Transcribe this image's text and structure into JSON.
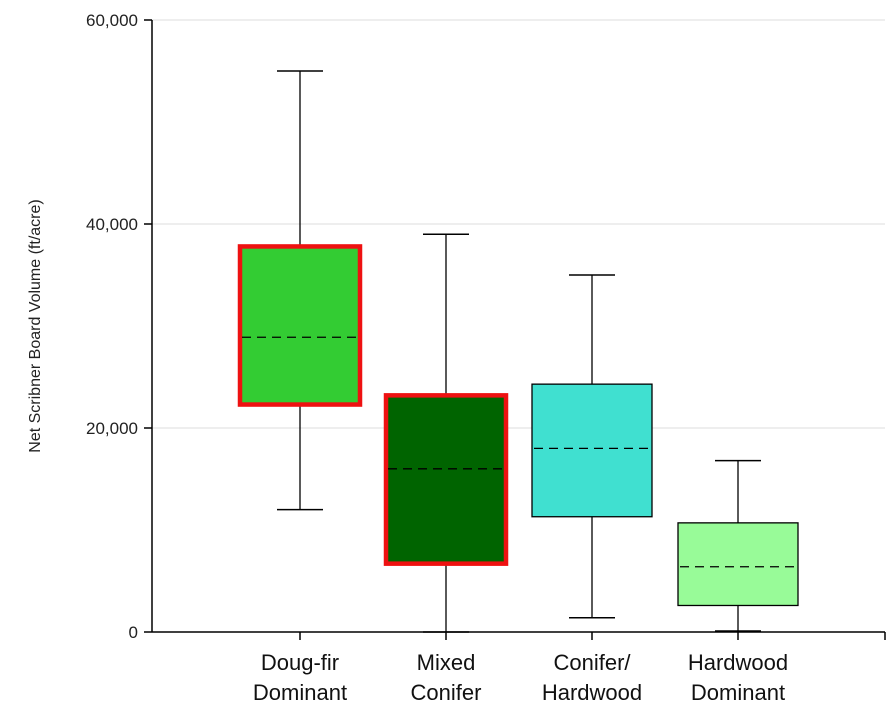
{
  "chart_data": {
    "type": "box",
    "title": "",
    "xlabel": "",
    "ylabel": "Net Scribner Board Volume (ft/acre)",
    "ylim": [
      0,
      60000
    ],
    "yticks": [
      {
        "value": 0,
        "label": "0"
      },
      {
        "value": 20000,
        "label": "20,000"
      },
      {
        "value": 40000,
        "label": "40,000"
      },
      {
        "value": 60000,
        "label": "60,000"
      }
    ],
    "grid": true,
    "categories": [
      {
        "line1": "Doug-fir",
        "line2": "Dominant"
      },
      {
        "line1": "Mixed",
        "line2": "Conifer"
      },
      {
        "line1": "Conifer/",
        "line2": "Hardwood"
      },
      {
        "line1": "Hardwood",
        "line2": "Dominant"
      }
    ],
    "boxes": [
      {
        "whisker_low": 12000,
        "q1": 22300,
        "median": 28900,
        "q3": 37800,
        "whisker_high": 55000,
        "color": "#33cc33",
        "highlight": true
      },
      {
        "whisker_low": 0,
        "q1": 6700,
        "median": 16000,
        "q3": 23200,
        "whisker_high": 39000,
        "color": "#006400",
        "highlight": true
      },
      {
        "whisker_low": 1400,
        "q1": 11300,
        "median": 18000,
        "q3": 24300,
        "whisker_high": 35000,
        "color": "#40e0d0",
        "highlight": false
      },
      {
        "whisker_low": 100,
        "q1": 2600,
        "median": 6400,
        "q3": 10700,
        "whisker_high": 16800,
        "color": "#98fb98",
        "highlight": false
      }
    ],
    "highlight_color": "#ee1111"
  }
}
